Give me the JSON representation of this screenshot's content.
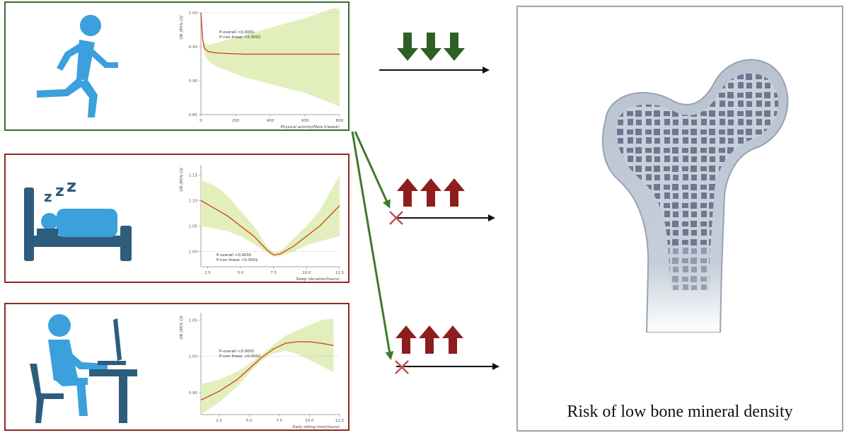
{
  "colors": {
    "activity_frame": "#3a6a2c",
    "inactive_frame": "#8e2a25",
    "arrow_down": "#2f5f24",
    "arrow_up": "#8e1d1d",
    "icon_blue": "#3ba0dc",
    "icon_dark": "#2e5c7c",
    "curve": "#d24a1e",
    "ci_band": "#e2efbd",
    "bone_fill": "#b9c2cf",
    "bone_dark": "#6b7890"
  },
  "icons": {
    "activity": "running-person-icon",
    "sleep": "sleeping-person-icon",
    "sitting": "sitting-at-computer-icon",
    "bone": "femur-bone-icon",
    "cross": "cross-mark-icon"
  },
  "outcome": {
    "label": "Risk of low bone mineral density"
  },
  "chart_data": [
    {
      "type": "line",
      "title": "",
      "xlabel": "Physical activity(Mets h/week)",
      "ylabel": "OR (95% CI)",
      "xlim": [
        0,
        800
      ],
      "ylim": [
        0.85,
        1.0
      ],
      "xticks": [
        "0",
        "200",
        "400",
        "600",
        "800"
      ],
      "yticks": [
        "0.85",
        "0.90",
        "0.95",
        "1.00"
      ],
      "annotations": [
        "P-overall <0.0001",
        "P-non-linear <0.0001"
      ],
      "reference_line": 1.0,
      "series": [
        {
          "x": [
            0,
            10,
            20,
            40,
            80,
            150,
            250,
            400,
            600,
            800
          ],
          "y": [
            1.0,
            0.96,
            0.948,
            0.943,
            0.941,
            0.94,
            0.939,
            0.939,
            0.939,
            0.939
          ],
          "lower": [
            1.0,
            0.955,
            0.94,
            0.93,
            0.922,
            0.915,
            0.905,
            0.895,
            0.882,
            0.862
          ],
          "upper": [
            1.0,
            0.966,
            0.955,
            0.952,
            0.955,
            0.96,
            0.967,
            0.978,
            0.992,
            1.01
          ]
        }
      ]
    },
    {
      "type": "line",
      "title": "",
      "xlabel": "Sleep (duration/hours)",
      "ylabel": "OR (95% CI)",
      "xlim": [
        2,
        12.5
      ],
      "ylim": [
        0.97,
        1.17
      ],
      "xticks": [
        "2.5",
        "5.0",
        "7.5",
        "10.0",
        "12.5"
      ],
      "yticks": [
        "1.00",
        "1.05",
        "1.10",
        "1.15"
      ],
      "annotations": [
        "P-overall <0.0001",
        "P-non-linear <0.0001"
      ],
      "reference_line": 1.0,
      "series": [
        {
          "x": [
            2,
            3,
            4,
            5,
            6,
            7,
            7.5,
            8,
            9,
            10,
            11,
            12.5
          ],
          "y": [
            1.1,
            1.085,
            1.07,
            1.05,
            1.03,
            1.003,
            0.993,
            0.995,
            1.01,
            1.03,
            1.05,
            1.09
          ],
          "lower": [
            1.05,
            1.045,
            1.04,
            1.03,
            1.015,
            0.998,
            0.99,
            0.99,
            1.0,
            1.012,
            1.02,
            1.03
          ],
          "upper": [
            1.14,
            1.13,
            1.11,
            1.08,
            1.05,
            1.01,
            0.998,
            1.0,
            1.025,
            1.05,
            1.08,
            1.15
          ]
        }
      ]
    },
    {
      "type": "line",
      "title": "",
      "xlabel": "Daily sitting time(hours)",
      "ylabel": "OR (95% CI)",
      "xlim": [
        1,
        12.5
      ],
      "ylim": [
        0.92,
        1.06
      ],
      "xticks": [
        "2.5",
        "5.0",
        "7.5",
        "10.0",
        "12.5"
      ],
      "yticks": [
        "0.95",
        "1.00",
        "1.05"
      ],
      "annotations": [
        "P-overall <0.0001",
        "P-non-linear <0.0001"
      ],
      "reference_line": 1.0,
      "series": [
        {
          "x": [
            1,
            2.5,
            4,
            5,
            6,
            7,
            8,
            9,
            10,
            11,
            12
          ],
          "y": [
            0.94,
            0.952,
            0.968,
            0.983,
            0.998,
            1.01,
            1.018,
            1.02,
            1.02,
            1.018,
            1.015
          ],
          "lower": [
            0.92,
            0.937,
            0.958,
            0.977,
            0.994,
            1.004,
            1.008,
            1.003,
            0.995,
            0.987,
            0.978
          ],
          "upper": [
            0.962,
            0.968,
            0.979,
            0.99,
            1.002,
            1.016,
            1.028,
            1.036,
            1.043,
            1.05,
            1.052
          ]
        }
      ]
    }
  ]
}
